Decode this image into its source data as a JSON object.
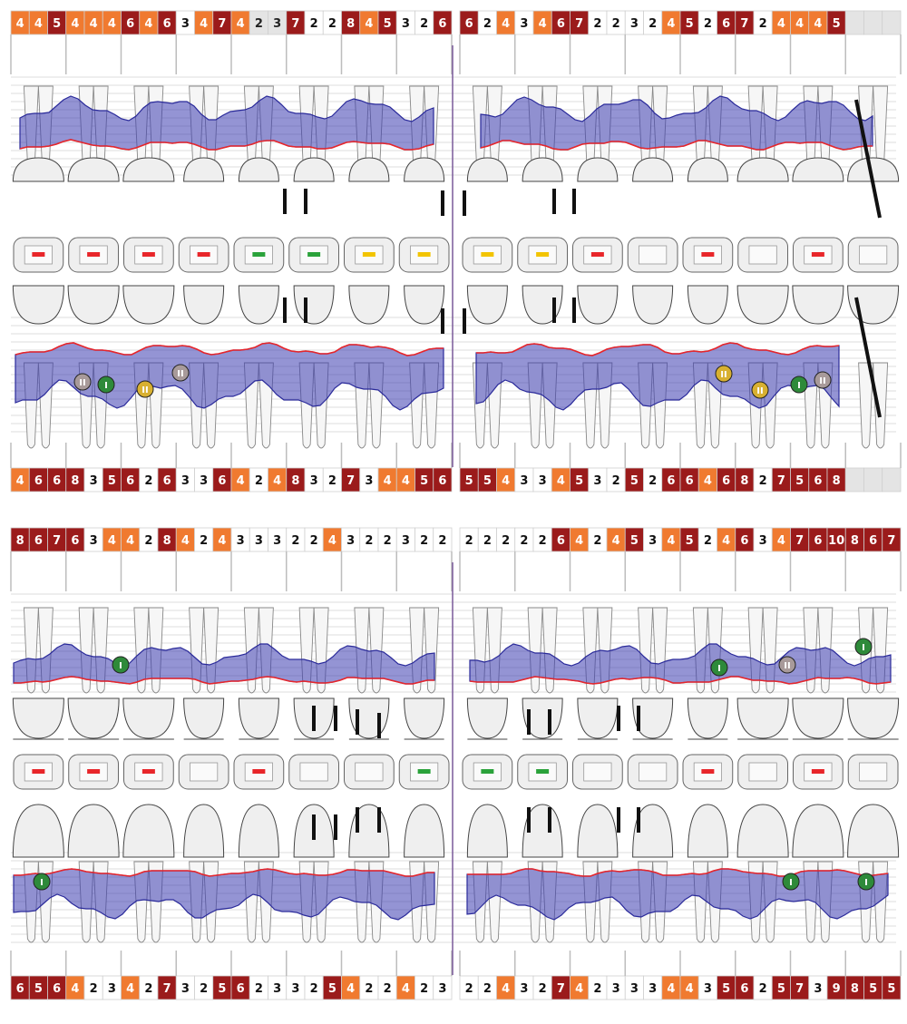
{
  "colors": {
    "severe": "#9b1b1b",
    "moderate": "#f07a30",
    "light": "#e4e4e4",
    "normal": "#ffffff",
    "pocket_fill": "#3c3cb0",
    "gingival_line": "#e8262a",
    "tooth_fill": "#efefef",
    "tooth_stroke": "#444444",
    "divider": "#7a5a9a",
    "furcation_grade_1": "#2e8a3a",
    "furcation_grade_2": "#a89a9a",
    "furcation_grade_2_alt": "#d8b030",
    "restoration_red": "#e8262a",
    "restoration_green": "#2aa23a",
    "restoration_yellow": "#f2c400"
  },
  "icons": [
    "furcation-marker-icon",
    "mobility-mark-icon",
    "implant-missing-strike-icon",
    "occlusal-surface-icon"
  ],
  "charts": [
    {
      "name": "upper-jaw-chart",
      "rows": [
        {
          "name": "upper-buccal-pocket-depths",
          "cells": [
            "4",
            "4",
            "5",
            "4",
            "4",
            "4",
            "6",
            "4",
            "6",
            "3",
            "4",
            "7",
            "4",
            "2",
            "3",
            "7",
            "2",
            "2",
            "8",
            "4",
            "5",
            "3",
            "2",
            "6",
            "6",
            "2",
            "4",
            "3",
            "4",
            "6",
            "7",
            "2",
            "2",
            "3",
            "2",
            "4",
            "5",
            "2",
            "6",
            "7",
            "2",
            "4",
            "4",
            "4",
            "5",
            "",
            "",
            ""
          ],
          "levels": [
            "m",
            "m",
            "s",
            "m",
            "m",
            "m",
            "s",
            "m",
            "s",
            "n",
            "m",
            "s",
            "m",
            "l",
            "l",
            "s",
            "n",
            "n",
            "s",
            "m",
            "s",
            "n",
            "n",
            "s",
            "s",
            "n",
            "m",
            "n",
            "m",
            "s",
            "s",
            "n",
            "n",
            "n",
            "n",
            "m",
            "s",
            "n",
            "s",
            "s",
            "n",
            "m",
            "m",
            "m",
            "s",
            "l",
            "l",
            "l"
          ]
        },
        {
          "name": "upper-palatal-pocket-depths",
          "cells": [
            "4",
            "6",
            "6",
            "8",
            "3",
            "5",
            "6",
            "2",
            "6",
            "3",
            "3",
            "6",
            "4",
            "2",
            "4",
            "8",
            "3",
            "2",
            "7",
            "3",
            "4",
            "4",
            "5",
            "6",
            "5",
            "5",
            "4",
            "3",
            "3",
            "4",
            "5",
            "3",
            "2",
            "5",
            "2",
            "6",
            "6",
            "4",
            "6",
            "8",
            "2",
            "7",
            "5",
            "6",
            "8",
            "",
            "",
            ""
          ],
          "levels": [
            "m",
            "s",
            "s",
            "s",
            "n",
            "s",
            "s",
            "n",
            "s",
            "n",
            "n",
            "s",
            "m",
            "n",
            "m",
            "s",
            "n",
            "n",
            "s",
            "n",
            "m",
            "m",
            "s",
            "s",
            "s",
            "s",
            "m",
            "n",
            "n",
            "m",
            "s",
            "n",
            "n",
            "s",
            "n",
            "s",
            "s",
            "m",
            "s",
            "s",
            "n",
            "s",
            "s",
            "s",
            "s",
            "l",
            "l",
            "l"
          ]
        }
      ]
    },
    {
      "name": "lower-jaw-chart",
      "rows": [
        {
          "name": "lower-lingual-pocket-depths",
          "cells": [
            "8",
            "6",
            "7",
            "6",
            "3",
            "4",
            "4",
            "2",
            "8",
            "4",
            "2",
            "4",
            "3",
            "3",
            "3",
            "2",
            "2",
            "4",
            "3",
            "2",
            "2",
            "3",
            "2",
            "2",
            "2",
            "2",
            "2",
            "2",
            "2",
            "6",
            "4",
            "2",
            "4",
            "5",
            "3",
            "4",
            "5",
            "2",
            "4",
            "6",
            "3",
            "4",
            "7",
            "6",
            "10",
            "8",
            "6",
            "7"
          ],
          "levels": [
            "s",
            "s",
            "s",
            "s",
            "n",
            "m",
            "m",
            "n",
            "s",
            "m",
            "n",
            "m",
            "n",
            "n",
            "n",
            "n",
            "n",
            "m",
            "n",
            "n",
            "n",
            "n",
            "n",
            "n",
            "n",
            "n",
            "n",
            "n",
            "n",
            "s",
            "m",
            "n",
            "m",
            "s",
            "n",
            "m",
            "s",
            "n",
            "m",
            "s",
            "n",
            "m",
            "s",
            "s",
            "s",
            "s",
            "s",
            "s"
          ]
        },
        {
          "name": "lower-buccal-pocket-depths",
          "cells": [
            "6",
            "5",
            "6",
            "4",
            "2",
            "3",
            "4",
            "2",
            "7",
            "3",
            "2",
            "5",
            "6",
            "2",
            "3",
            "3",
            "2",
            "5",
            "4",
            "2",
            "2",
            "4",
            "2",
            "3",
            "2",
            "2",
            "4",
            "3",
            "2",
            "7",
            "4",
            "2",
            "3",
            "3",
            "3",
            "4",
            "4",
            "3",
            "5",
            "6",
            "2",
            "5",
            "7",
            "3",
            "9",
            "8",
            "5",
            "5"
          ],
          "levels": [
            "s",
            "s",
            "s",
            "m",
            "n",
            "n",
            "m",
            "n",
            "s",
            "n",
            "n",
            "s",
            "s",
            "n",
            "n",
            "n",
            "n",
            "s",
            "m",
            "n",
            "n",
            "m",
            "n",
            "n",
            "n",
            "n",
            "m",
            "n",
            "n",
            "s",
            "m",
            "n",
            "n",
            "n",
            "n",
            "m",
            "m",
            "n",
            "s",
            "s",
            "n",
            "s",
            "s",
            "n",
            "s",
            "s",
            "s",
            "s"
          ]
        }
      ]
    }
  ],
  "furcation_labels": {
    "grade_1": "I",
    "grade_2": "II"
  }
}
